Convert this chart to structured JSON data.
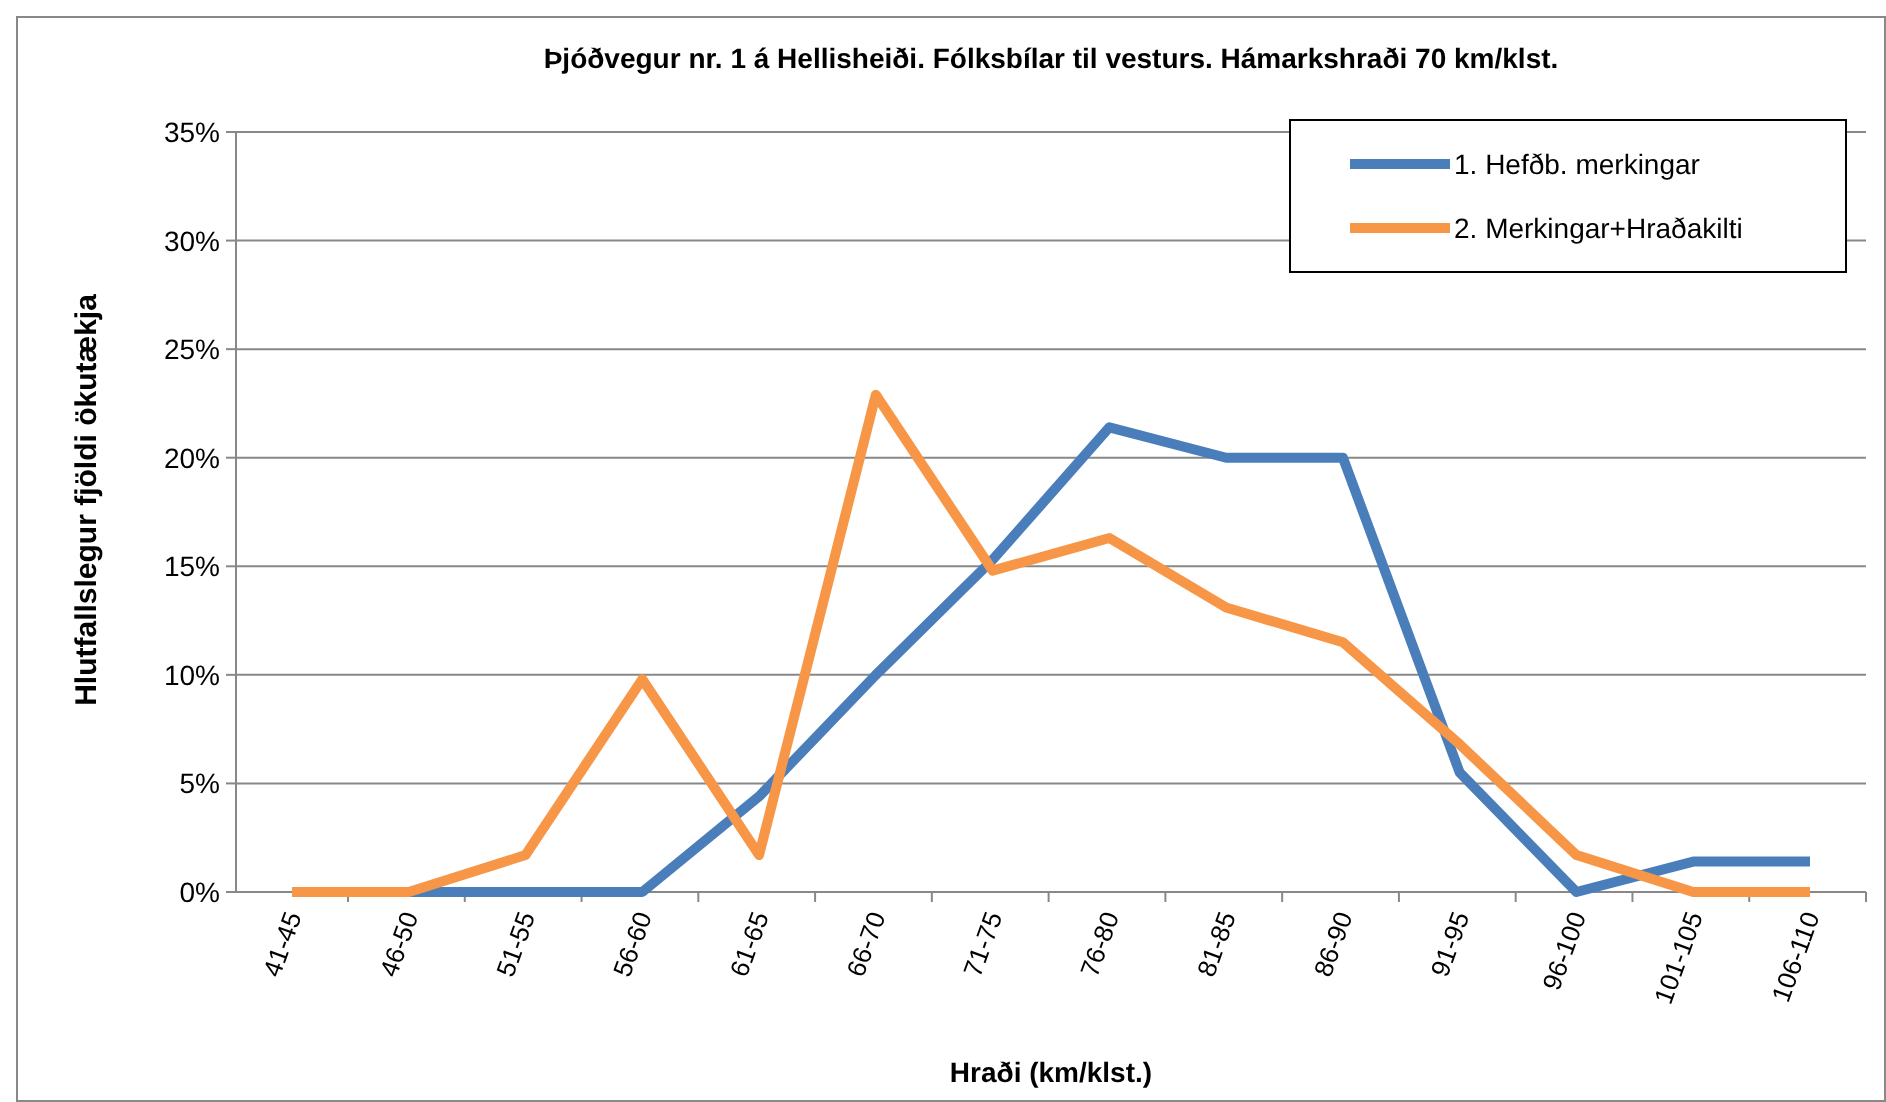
{
  "chart_data": {
    "type": "line",
    "title": "Þjóðvegur nr. 1 á Hellisheiði. Fólksbílar til vesturs. Hámarkshraði 70 km/klst.",
    "xlabel": "Hraði (km/klst.)",
    "ylabel": "Hlutfallslegur fjöldi ökutækja",
    "categories": [
      "41-45",
      "46-50",
      "51-55",
      "56-60",
      "61-65",
      "66-70",
      "71-75",
      "76-80",
      "81-85",
      "86-90",
      "91-95",
      "96-100",
      "101-105",
      "106-110"
    ],
    "series": [
      {
        "name": "1. Hefðb. merkingar",
        "color": "#4a7ebb",
        "values": [
          0,
          0,
          0,
          0,
          4.4,
          10,
          15.3,
          21.4,
          20,
          20,
          5.5,
          0,
          1.4,
          1.4
        ]
      },
      {
        "name": "2. Merkingar+Hraðakilti",
        "color": "#f79646",
        "values": [
          0,
          0,
          1.7,
          9.8,
          1.7,
          22.9,
          14.8,
          16.3,
          13.1,
          11.5,
          6.8,
          1.7,
          0,
          0
        ]
      }
    ],
    "ylim": [
      0,
      35
    ],
    "yticks": [
      {
        "value": 0,
        "label": "0%"
      },
      {
        "value": 5,
        "label": "5%"
      },
      {
        "value": 10,
        "label": "10%"
      },
      {
        "value": 15,
        "label": "15%"
      },
      {
        "value": 20,
        "label": "20%"
      },
      {
        "value": 25,
        "label": "25%"
      },
      {
        "value": 30,
        "label": "30%"
      },
      {
        "value": 35,
        "label": "35%"
      }
    ],
    "grid": "y",
    "legend": "top right",
    "marker": "none",
    "line_style": "solid"
  }
}
